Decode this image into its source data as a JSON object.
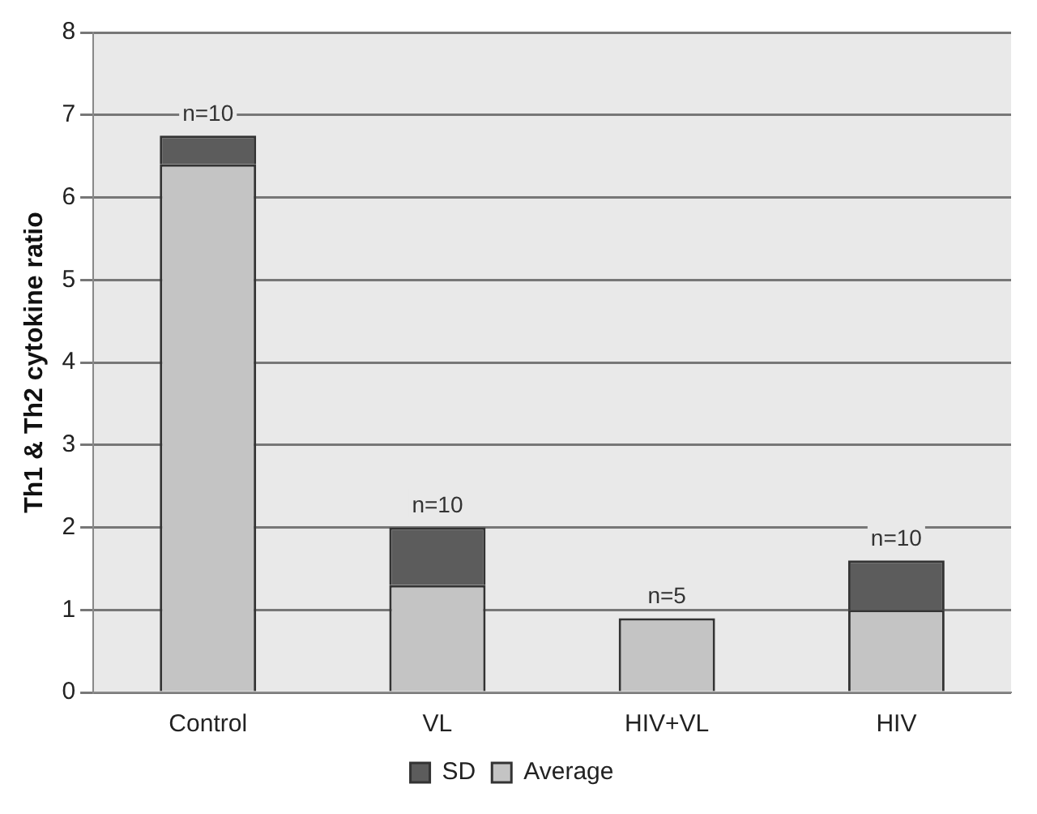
{
  "chart_data": {
    "type": "bar",
    "ylabel": "Th1 & Th2 cytokine ratio",
    "categories": [
      "Control",
      "VL",
      "HIV+VL",
      "HIV"
    ],
    "series": [
      {
        "name": "Average",
        "color": "#c4c4c4",
        "values": [
          6.4,
          1.3,
          0.9,
          1.0
        ]
      },
      {
        "name": "SD",
        "color": "#5c5c5c",
        "values": [
          0.35,
          0.7,
          null,
          0.6
        ]
      }
    ],
    "stacked": true,
    "ylim": [
      0,
      8
    ],
    "yticks": [
      0,
      1,
      2,
      3,
      4,
      5,
      6,
      7,
      8
    ],
    "grid": "y",
    "legend": "bottom",
    "annotations": [
      {
        "text": "n=10",
        "x": "Control",
        "y": 6.75
      },
      {
        "text": "n=10",
        "x": "VL",
        "y": 2.0
      },
      {
        "text": "n=5",
        "x": "HIV+VL",
        "y": 0.9
      },
      {
        "text": "n=10",
        "x": "HIV",
        "y": 1.6
      }
    ]
  }
}
